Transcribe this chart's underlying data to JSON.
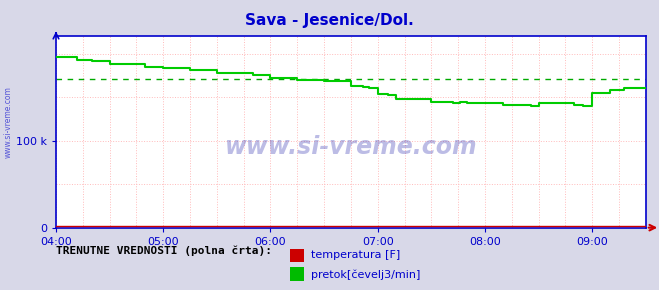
{
  "title": "Sava - Jesenice/Dol.",
  "title_color": "#0000cc",
  "bg_color": "#d8d8e8",
  "plot_bg_color": "#ffffff",
  "ylim": [
    0,
    220000
  ],
  "yticks": [
    0,
    100000
  ],
  "ytick_labels": [
    "0",
    "100 k"
  ],
  "xtick_positions": [
    0,
    60,
    120,
    180,
    240,
    300
  ],
  "xtick_labels": [
    "04:00",
    "05:00",
    "06:00",
    "07:00",
    "08:00",
    "09:00"
  ],
  "grid_color": "#ffbbbb",
  "grid_style": ":",
  "watermark": "www.si-vreme.com",
  "watermark_color": "#2222aa",
  "legend_label1": "temperatura [F]",
  "legend_label2": "pretok[čevelj3/min]",
  "legend_color1": "#cc0000",
  "legend_color2": "#00bb00",
  "footer_text": "TRENUTNE VREDNOSTI (polna črta):",
  "axis_color": "#0000cc",
  "avg_line_value": 171000,
  "avg_line_color": "#00aa00",
  "green_line_color": "#00cc00",
  "red_line_color": "#cc0000",
  "flow_data_x": [
    0,
    12,
    12,
    20,
    20,
    30,
    30,
    50,
    50,
    60,
    60,
    75,
    75,
    90,
    90,
    110,
    110,
    120,
    120,
    135,
    135,
    150,
    150,
    165,
    165,
    172,
    172,
    175,
    175,
    180,
    180,
    186,
    186,
    190,
    190,
    210,
    210,
    222,
    222,
    226,
    226,
    230,
    230,
    250,
    250,
    266,
    266,
    270,
    270,
    290,
    290,
    295,
    295,
    300,
    300,
    310,
    310,
    318,
    318,
    330
  ],
  "flow_data_y": [
    196000,
    196000,
    193000,
    193000,
    191000,
    191000,
    188000,
    188000,
    185000,
    185000,
    183000,
    183000,
    181000,
    181000,
    178000,
    178000,
    175000,
    175000,
    172000,
    172000,
    170000,
    170000,
    168000,
    168000,
    163000,
    163000,
    162000,
    162000,
    160000,
    160000,
    154000,
    154000,
    152000,
    152000,
    148000,
    148000,
    145000,
    145000,
    143000,
    143000,
    144000,
    144000,
    143000,
    143000,
    141000,
    141000,
    140000,
    140000,
    143000,
    143000,
    141000,
    141000,
    140000,
    140000,
    155000,
    155000,
    158000,
    158000,
    160000,
    160000
  ],
  "temp_data_x": [
    0,
    330
  ],
  "temp_data_y": [
    1500,
    1500
  ],
  "xmin": 0,
  "xmax": 330,
  "arrow_color": "#cc0000"
}
